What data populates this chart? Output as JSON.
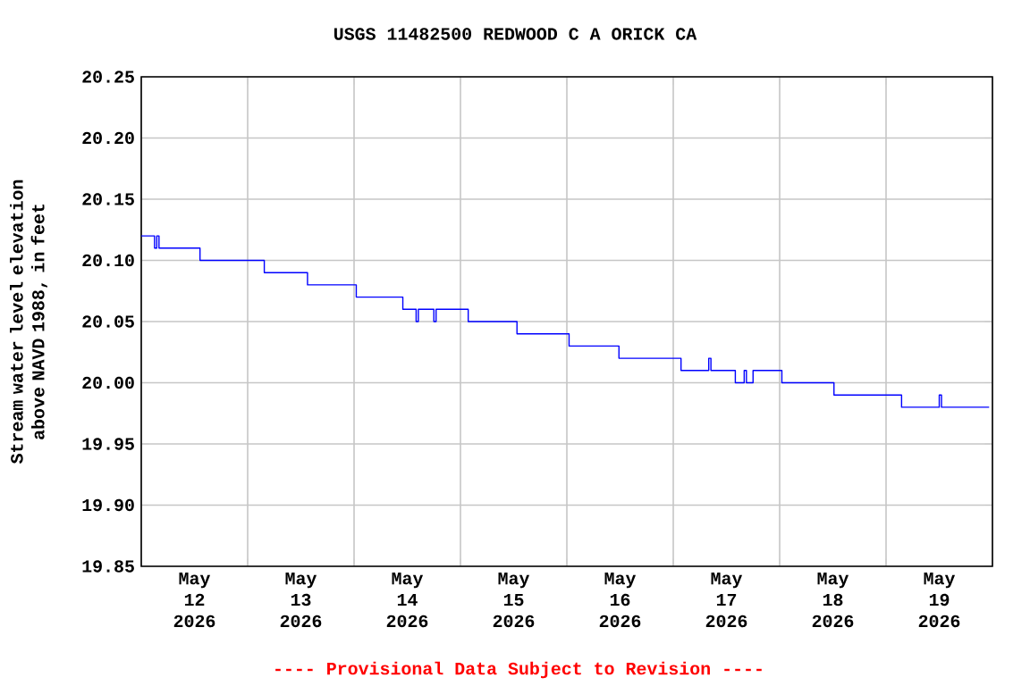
{
  "chart_data": {
    "type": "step",
    "title": "USGS 11482500 REDWOOD C A ORICK CA",
    "ylabel": "Stream water level elevation above NAVD 1988, in feet",
    "annotations": [
      "---- Provisional Data Subject to Revision ----"
    ],
    "x": [
      "2026-05-12T00:00",
      "2026-05-12T03:00",
      "2026-05-12T03:30",
      "2026-05-12T04:00",
      "2026-05-12T05:15",
      "2026-05-12T13:15",
      "2026-05-13T03:45",
      "2026-05-13T13:30",
      "2026-05-14T00:30",
      "2026-05-14T11:00",
      "2026-05-14T14:00",
      "2026-05-14T14:30",
      "2026-05-14T18:00",
      "2026-05-14T18:30",
      "2026-05-15T01:45",
      "2026-05-15T12:45",
      "2026-05-16T00:30",
      "2026-05-16T11:45",
      "2026-05-17T01:45",
      "2026-05-17T08:00",
      "2026-05-17T08:30",
      "2026-05-17T14:00",
      "2026-05-17T16:00",
      "2026-05-17T16:30",
      "2026-05-17T18:00",
      "2026-05-18T00:30",
      "2026-05-18T12:15",
      "2026-05-19T03:30",
      "2026-05-19T12:00",
      "2026-05-19T12:30",
      "2026-05-19T23:15"
    ],
    "series": [
      {
        "color": "#0000ff",
        "values": [
          20.12,
          20.11,
          20.12,
          20.11,
          20.11,
          20.1,
          20.09,
          20.08,
          20.07,
          20.06,
          20.05,
          20.06,
          20.05,
          20.06,
          20.05,
          20.04,
          20.03,
          20.02,
          20.01,
          20.02,
          20.01,
          20.0,
          20.01,
          20.0,
          20.01,
          20.0,
          19.99,
          19.98,
          19.99,
          19.98,
          19.98
        ]
      }
    ],
    "xlim": [
      "2026-05-12T00:00",
      "2026-05-20T00:00"
    ],
    "xticks": [
      {
        "value": "2026-05-12T00:00",
        "label": null
      },
      {
        "value": "2026-05-12T12:00",
        "label": "May 12 2026"
      },
      {
        "value": "2026-05-13T00:00",
        "label": null
      },
      {
        "value": "2026-05-13T12:00",
        "label": "May 13 2026"
      },
      {
        "value": "2026-05-14T00:00",
        "label": null
      },
      {
        "value": "2026-05-14T12:00",
        "label": "May 14 2026"
      },
      {
        "value": "2026-05-15T00:00",
        "label": null
      },
      {
        "value": "2026-05-15T12:00",
        "label": "May 15 2026"
      },
      {
        "value": "2026-05-16T00:00",
        "label": null
      },
      {
        "value": "2026-05-16T12:00",
        "label": "May 16 2026"
      },
      {
        "value": "2026-05-17T00:00",
        "label": null
      },
      {
        "value": "2026-05-17T12:00",
        "label": "May 17 2026"
      },
      {
        "value": "2026-05-18T00:00",
        "label": null
      },
      {
        "value": "2026-05-18T12:00",
        "label": "May 18 2026"
      },
      {
        "value": "2026-05-19T00:00",
        "label": null
      },
      {
        "value": "2026-05-19T12:00",
        "label": "May 19 2026"
      },
      {
        "value": "2026-05-20T00:00",
        "label": null
      }
    ],
    "ylim": [
      19.85,
      20.25
    ],
    "yticks": [
      19.85,
      {
        "value": 19.9,
        "label": "19.90"
      },
      19.95,
      {
        "value": 20.0,
        "label": "20.00"
      },
      20.05,
      {
        "value": 20.1,
        "label": "20.10"
      },
      20.15,
      {
        "value": 20.2,
        "label": "20.20"
      },
      20.25
    ],
    "grid": true,
    "marker": "none",
    "line_style": "solid"
  }
}
